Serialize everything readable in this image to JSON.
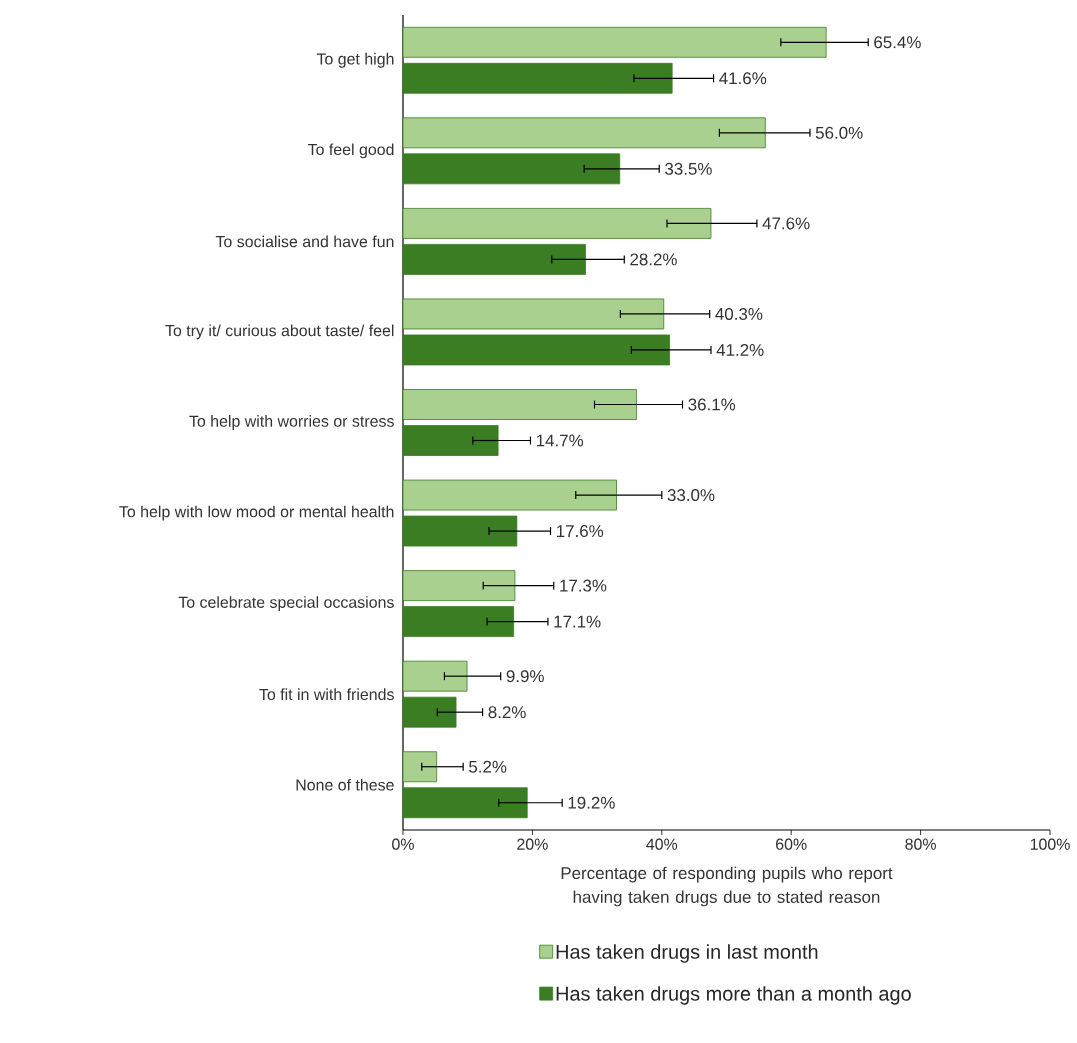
{
  "chart_data": {
    "type": "bar",
    "orientation": "horizontal",
    "xlabel": "Percentage of responding pupils who report having taken drugs due to stated reason",
    "categories": [
      "To get high",
      "To feel good",
      "To socialise and have fun",
      "To try it/ curious about taste/ feel",
      "To help with worries or stress",
      "To help with low mood or mental health",
      "To celebrate special occasions",
      "To fit in with friends",
      "None of these"
    ],
    "series": [
      {
        "name": "Has taken drugs in last month",
        "color": "#a9d08e",
        "values": [
          65.4,
          56.0,
          47.6,
          40.3,
          36.1,
          33.0,
          17.3,
          9.9,
          5.2
        ],
        "value_labels": [
          "65.4%",
          "56.0%",
          "47.6%",
          "40.3%",
          "36.1%",
          "33.0%",
          "17.3%",
          "9.9%",
          "5.2%"
        ],
        "errors": [
          [
            58.4,
            71.9
          ],
          [
            48.9,
            62.9
          ],
          [
            40.8,
            54.7
          ],
          [
            33.6,
            47.4
          ],
          [
            29.6,
            43.2
          ],
          [
            26.7,
            40.0
          ],
          [
            12.4,
            23.3
          ],
          [
            6.4,
            15.1
          ],
          [
            2.9,
            9.3
          ]
        ]
      },
      {
        "name": "Has taken drugs more than a month ago",
        "color": "#3a7d22",
        "values": [
          41.6,
          33.5,
          28.2,
          41.2,
          14.7,
          17.6,
          17.1,
          8.2,
          19.2
        ],
        "value_labels": [
          "41.6%",
          "33.5%",
          "28.2%",
          "41.2%",
          "14.7%",
          "17.6%",
          "17.1%",
          "8.2%",
          "19.2%"
        ],
        "errors": [
          [
            35.7,
            48.0
          ],
          [
            28.0,
            39.6
          ],
          [
            23.0,
            34.2
          ],
          [
            35.3,
            47.6
          ],
          [
            10.8,
            19.7
          ],
          [
            13.3,
            22.8
          ],
          [
            13.0,
            22.4
          ],
          [
            5.3,
            12.3
          ],
          [
            14.8,
            24.6
          ]
        ]
      }
    ],
    "xlim": [
      0,
      100
    ],
    "xticks": [
      {
        "value": 0,
        "label": "0%"
      },
      {
        "value": 20,
        "label": "20%"
      },
      {
        "value": 40,
        "label": "40%"
      },
      {
        "value": 60,
        "label": "60%"
      },
      {
        "value": 80,
        "label": "80%"
      },
      {
        "value": 100,
        "label": "100%"
      }
    ],
    "legend": "bottom"
  }
}
